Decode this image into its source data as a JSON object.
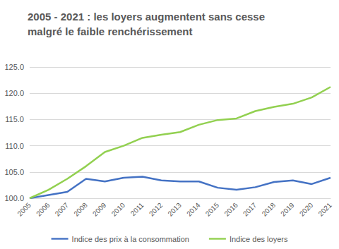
{
  "chart_data": {
    "type": "line",
    "title": "2005 - 2021 : les loyers augmentent sans cesse malgré le faible renchérissement",
    "categories": [
      "2005",
      "2006",
      "2007",
      "2008",
      "2009",
      "2010",
      "2011",
      "2012",
      "2013",
      "2014",
      "2015",
      "2016",
      "2017",
      "2018",
      "2019",
      "2020",
      "2021"
    ],
    "series": [
      {
        "name": "Indice des prix à la consommation",
        "color": "#4472c4",
        "values": [
          100.0,
          100.6,
          101.2,
          103.7,
          103.2,
          103.9,
          104.1,
          103.4,
          103.2,
          103.2,
          102.0,
          101.6,
          102.1,
          103.1,
          103.4,
          102.7,
          103.9
        ]
      },
      {
        "name": "Indice des loyers",
        "color": "#92d050",
        "values": [
          100.0,
          101.6,
          103.7,
          106.1,
          108.8,
          110.0,
          111.5,
          112.1,
          112.6,
          114.0,
          114.9,
          115.2,
          116.6,
          117.4,
          118.0,
          119.2,
          121.2
        ]
      }
    ],
    "ylim": [
      100,
      125
    ],
    "yticks": [
      {
        "value": 100,
        "label": "100.0"
      },
      {
        "value": 105,
        "label": "105.0"
      },
      {
        "value": 110,
        "label": "110.0"
      },
      {
        "value": 115,
        "label": "115.0"
      },
      {
        "value": 120,
        "label": "120.0"
      },
      {
        "value": 125,
        "label": "125.0"
      }
    ],
    "grid": true,
    "legend": "bottom"
  }
}
